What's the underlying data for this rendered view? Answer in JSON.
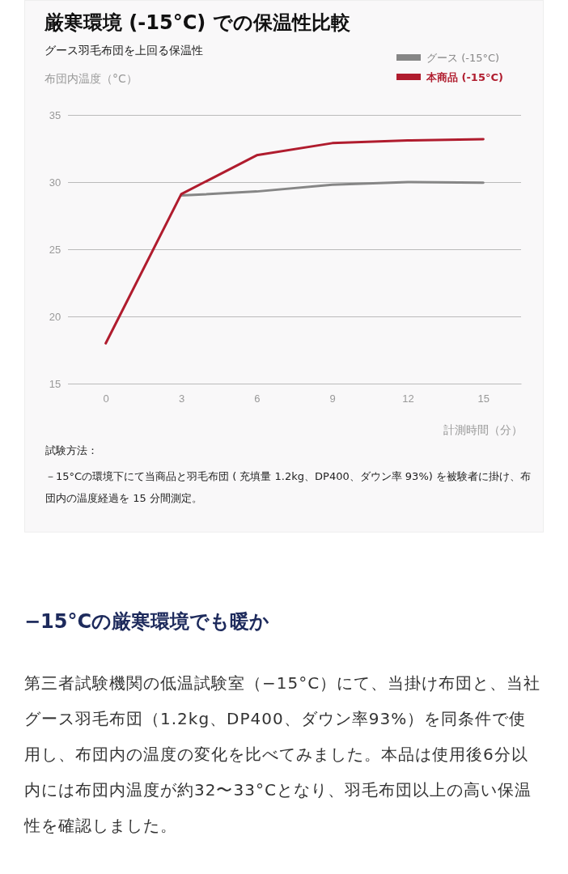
{
  "chart_data": {
    "type": "line",
    "title": "厳寒環境 (-15°C) での保温性比較",
    "subtitle": "グース羽毛布団を上回る保温性",
    "ylabel": "布団内温度（°C）",
    "xlabel": "計測時間（分）",
    "x": [
      0,
      3,
      6,
      9,
      12,
      15
    ],
    "series": [
      {
        "name": "グース (-15°C)",
        "color": "#868686",
        "values": [
          null,
          29.0,
          29.3,
          29.8,
          30.0,
          29.95
        ]
      },
      {
        "name": "本商品 (-15°C)",
        "color": "#b01c2e",
        "values": [
          18.0,
          29.1,
          32.0,
          32.9,
          33.1,
          33.2
        ]
      }
    ],
    "xlim": [
      -1.5,
      16.5
    ],
    "xticks": [
      0,
      3,
      6,
      9,
      12,
      15
    ],
    "ylim": [
      15,
      35
    ],
    "yticks": [
      15,
      20,
      25,
      30,
      35
    ],
    "grid": "y",
    "legend": "top right",
    "line_style": "solid",
    "marker": "none",
    "annotations": [
      "試験方法：",
      "－15°Cの環境下にて当商品と羽毛布団 ( 充填量 1.2kg、DP400、ダウン率 93%) を被験者に掛け、布団内の温度経過を 15 分間測定。",
      "−15°Cの厳寒環境でも暖か",
      "第三者試験機関の低温試験室（−15°C）にて、当掛け布団と、当社グース羽毛布団（1.2kg、DP400、ダウン率93%）を同条件で使用し、布団内の温度の変化を比べてみました。本品は使用後6分以内には布団内温度が約32〜33°Cとなり、羽毛布団以上の高い保温性を確認しました。"
    ]
  }
}
